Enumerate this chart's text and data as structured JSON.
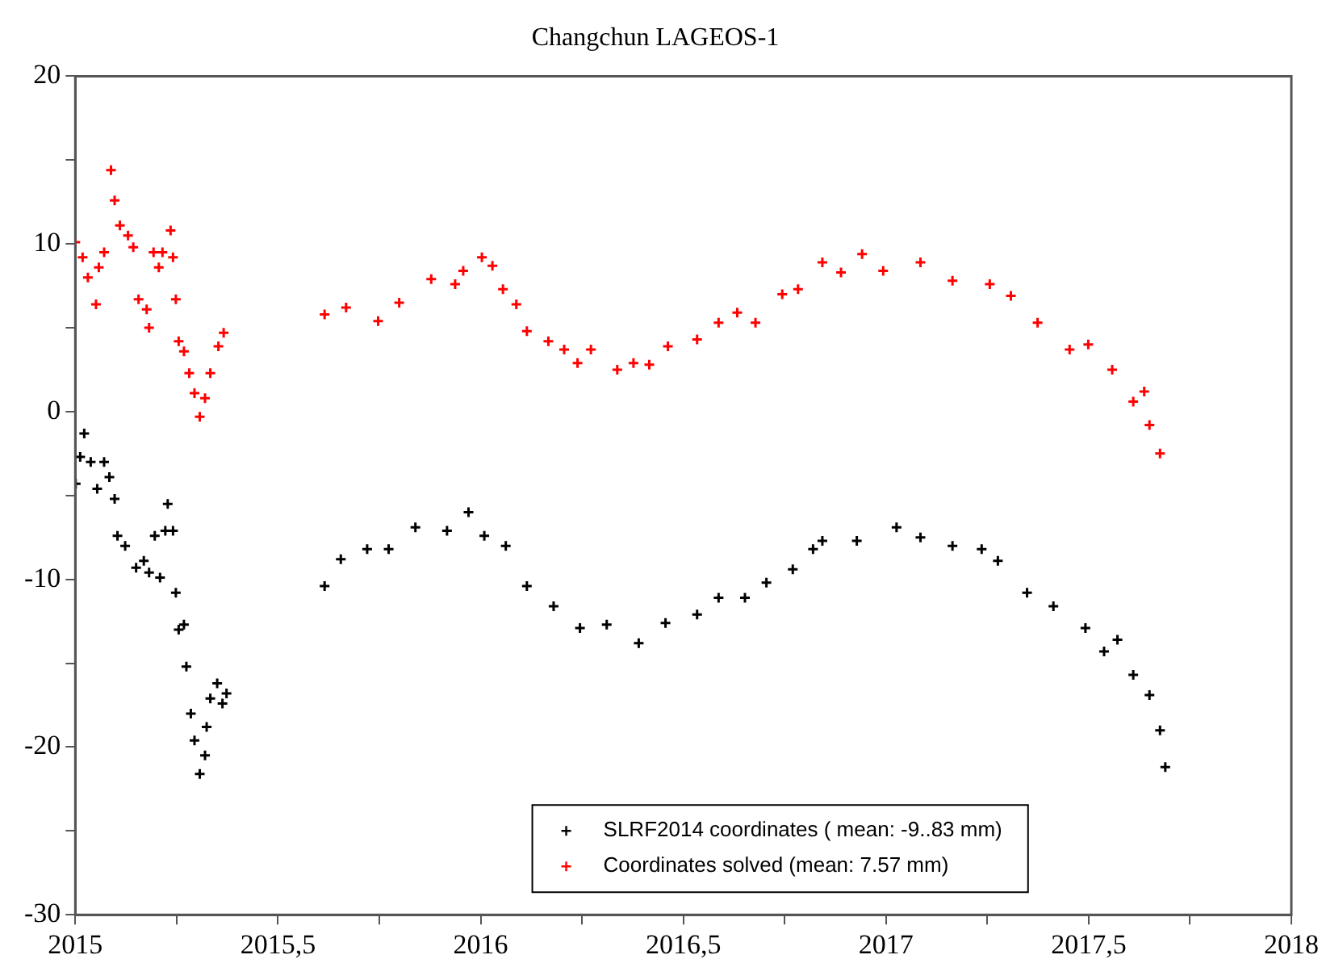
{
  "chart_data": {
    "type": "scatter",
    "title": "Changchun LAGEOS-1",
    "xlim": [
      2015,
      2018
    ],
    "xticks": [
      2015,
      {
        "value": 2015.25,
        "label": null
      },
      {
        "value": 2015.5,
        "label": "2015,5"
      },
      {
        "value": 2015.75,
        "label": null
      },
      2016,
      {
        "value": 2016.25,
        "label": null
      },
      {
        "value": 2016.5,
        "label": "2016,5"
      },
      {
        "value": 2016.75,
        "label": null
      },
      2017,
      {
        "value": 2017.25,
        "label": null
      },
      {
        "value": 2017.5,
        "label": "2017,5"
      },
      {
        "value": 2017.75,
        "label": null
      },
      2018
    ],
    "ylim": [
      -30,
      20
    ],
    "yticks": [
      -30,
      {
        "value": -25,
        "label": null
      },
      -20,
      {
        "value": -15,
        "label": null
      },
      -10,
      {
        "value": -5,
        "label": null
      },
      0,
      {
        "value": 5,
        "label": null
      },
      10,
      {
        "value": 15,
        "label": null
      },
      20
    ],
    "grid": false,
    "legend": "bottom",
    "marker": "cross",
    "series": [
      {
        "name": "SLRF2014 coordinates ( mean: -9..83 mm)",
        "color": "#000000",
        "x": [
          2015.001,
          2015.012,
          2015.022,
          2015.038,
          2015.054,
          2015.071,
          2015.084,
          2015.097,
          2015.104,
          2015.123,
          2015.15,
          2015.169,
          2015.182,
          2015.196,
          2015.209,
          2015.222,
          2015.228,
          2015.241,
          2015.248,
          2015.255,
          2015.268,
          2015.274,
          2015.285,
          2015.294,
          2015.307,
          2015.32,
          2015.324,
          2015.333,
          2015.35,
          2015.363,
          2015.373,
          2015.615,
          2015.655,
          2015.72,
          2015.773,
          2015.839,
          2015.917,
          2015.97,
          2016.009,
          2016.062,
          2016.114,
          2016.18,
          2016.245,
          2016.311,
          2016.39,
          2016.456,
          2016.534,
          2016.587,
          2016.652,
          2016.705,
          2016.77,
          2016.82,
          2016.843,
          2016.928,
          2017.026,
          2017.085,
          2017.164,
          2017.236,
          2017.276,
          2017.348,
          2017.413,
          2017.492,
          2017.538,
          2017.571,
          2017.61,
          2017.65,
          2017.676,
          2017.689
        ],
        "values": [
          -4.3,
          -2.7,
          -1.3,
          -3.0,
          -4.6,
          -3.0,
          -3.9,
          -5.2,
          -7.4,
          -8.0,
          -9.3,
          -8.9,
          -9.6,
          -7.4,
          -9.9,
          -7.1,
          -5.5,
          -7.1,
          -10.8,
          -13.0,
          -12.7,
          -15.2,
          -18.0,
          -19.6,
          -21.6,
          -20.5,
          -18.8,
          -17.1,
          -16.2,
          -17.4,
          -16.8,
          -10.4,
          -8.8,
          -8.2,
          -8.2,
          -6.9,
          -7.1,
          -6.0,
          -7.4,
          -8.0,
          -10.4,
          -11.6,
          -12.9,
          -12.7,
          -13.8,
          -12.6,
          -12.1,
          -11.1,
          -11.1,
          -10.2,
          -9.4,
          -8.2,
          -7.7,
          -7.7,
          -6.9,
          -7.5,
          -8.0,
          -8.2,
          -8.9,
          -10.8,
          -11.6,
          -12.9,
          -14.3,
          -13.6,
          -15.7,
          -16.9,
          -19.0,
          -21.2
        ]
      },
      {
        "name": "Coordinates solved (mean: 7.57 mm)",
        "color": "#ff0000",
        "x": [
          2015.0,
          2015.018,
          2015.031,
          2015.051,
          2015.058,
          2015.071,
          2015.088,
          2015.097,
          2015.11,
          2015.13,
          2015.143,
          2015.156,
          2015.176,
          2015.182,
          2015.193,
          2015.206,
          2015.215,
          2015.235,
          2015.241,
          2015.248,
          2015.255,
          2015.268,
          2015.281,
          2015.294,
          2015.307,
          2015.32,
          2015.333,
          2015.353,
          2015.366,
          2015.615,
          2015.668,
          2015.747,
          2015.799,
          2015.878,
          2015.937,
          2015.957,
          2016.003,
          2016.029,
          2016.055,
          2016.088,
          2016.114,
          2016.167,
          2016.206,
          2016.239,
          2016.272,
          2016.337,
          2016.377,
          2016.416,
          2016.462,
          2016.534,
          2016.587,
          2016.633,
          2016.678,
          2016.744,
          2016.783,
          2016.843,
          2016.889,
          2016.941,
          2016.993,
          2017.085,
          2017.164,
          2017.256,
          2017.308,
          2017.374,
          2017.453,
          2017.499,
          2017.558,
          2017.61,
          2017.637,
          2017.65,
          2017.676
        ],
        "values": [
          10.1,
          9.2,
          8.0,
          6.4,
          8.6,
          9.5,
          14.4,
          12.6,
          11.1,
          10.5,
          9.8,
          6.7,
          6.1,
          5.0,
          9.5,
          8.6,
          9.5,
          10.8,
          9.2,
          6.7,
          4.2,
          3.6,
          2.3,
          1.1,
          -0.3,
          0.8,
          2.3,
          3.9,
          4.7,
          5.8,
          6.2,
          5.4,
          6.5,
          7.9,
          7.6,
          8.4,
          9.2,
          8.7,
          7.3,
          6.4,
          4.8,
          4.2,
          3.7,
          2.9,
          3.7,
          2.5,
          2.9,
          2.8,
          3.9,
          4.3,
          5.3,
          5.9,
          5.3,
          7.0,
          7.3,
          8.9,
          8.3,
          9.4,
          8.4,
          8.9,
          7.8,
          7.6,
          6.9,
          5.3,
          3.7,
          4.0,
          2.5,
          0.6,
          1.2,
          -0.8,
          -2.5
        ]
      }
    ]
  }
}
